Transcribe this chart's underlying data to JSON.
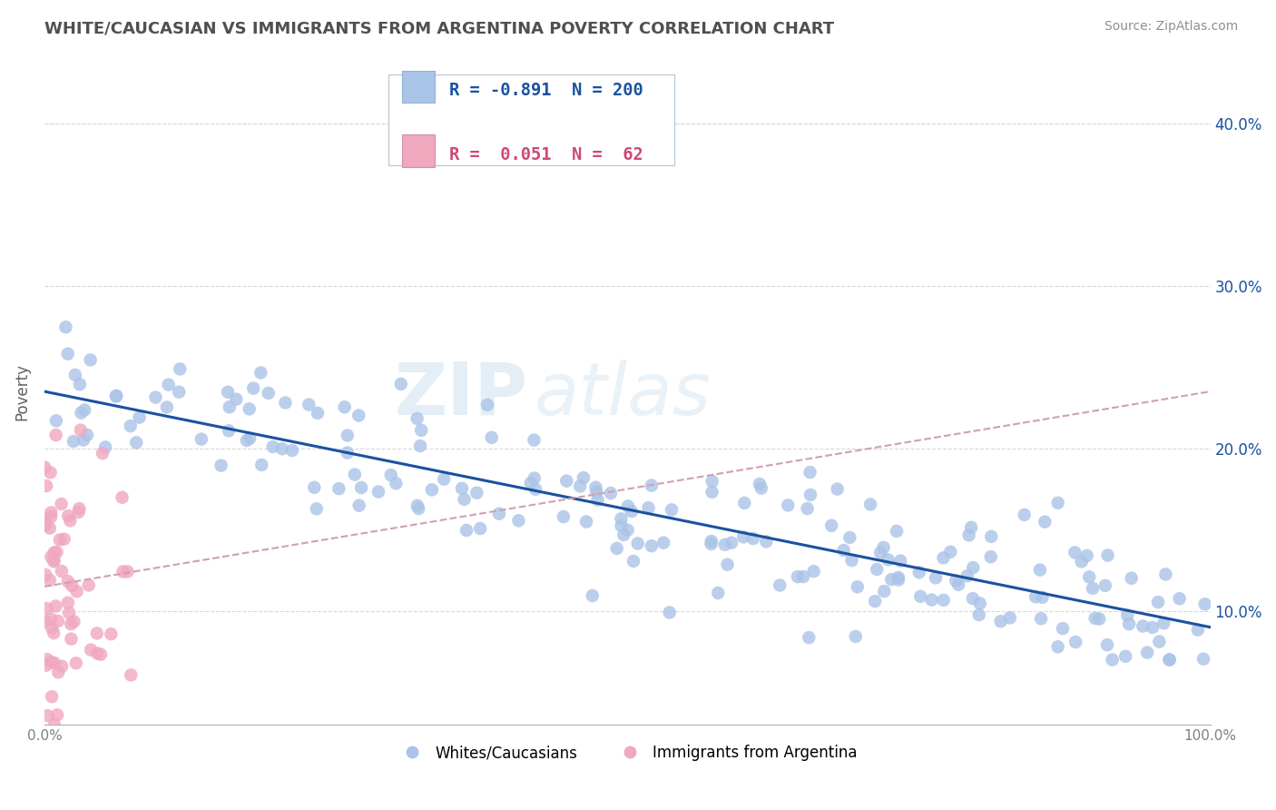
{
  "title": "WHITE/CAUCASIAN VS IMMIGRANTS FROM ARGENTINA POVERTY CORRELATION CHART",
  "source": "Source: ZipAtlas.com",
  "ylabel": "Poverty",
  "blue_R": -0.891,
  "blue_N": 200,
  "pink_R": 0.051,
  "pink_N": 62,
  "blue_color": "#aac4e8",
  "blue_line_color": "#1a52a0",
  "pink_color": "#f0a8be",
  "pink_line_color": "#d04878",
  "trend_line_color": "#d0a0b0",
  "legend_label_blue": "Whites/Caucasians",
  "legend_label_pink": "Immigrants from Argentina",
  "xlim": [
    0.0,
    1.0
  ],
  "ylim": [
    0.03,
    0.44
  ],
  "background_color": "#ffffff",
  "grid_color": "#d8d8d8",
  "title_color": "#505050",
  "title_fontsize": 13,
  "source_fontsize": 10,
  "watermark": "ZIPatlas",
  "blue_slope": -0.145,
  "blue_intercept": 0.235,
  "pink_slope": 0.12,
  "pink_intercept": 0.115
}
